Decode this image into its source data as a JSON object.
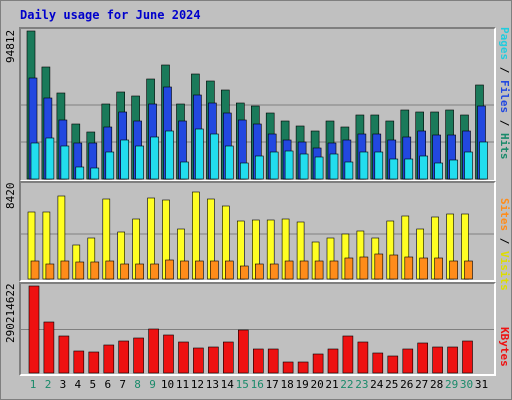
{
  "title": "Daily usage for June 2024",
  "chart_data": [
    {
      "type": "bar",
      "categories": [
        "1",
        "2",
        "3",
        "4",
        "5",
        "6",
        "7",
        "8",
        "9",
        "10",
        "11",
        "12",
        "13",
        "14",
        "15",
        "16",
        "17",
        "18",
        "19",
        "20",
        "21",
        "22",
        "23",
        "24",
        "25",
        "26",
        "27",
        "28",
        "29",
        "30",
        "31"
      ],
      "ylim": [
        0,
        94812
      ],
      "ytick": "94812",
      "series": [
        {
          "name": "Hits",
          "color": "#1a7a5a",
          "values": [
            94812,
            72000,
            55000,
            35000,
            30000,
            48000,
            56000,
            53000,
            64000,
            73000,
            48000,
            67000,
            63000,
            57000,
            49000,
            47000,
            42000,
            37000,
            34000,
            31000,
            37000,
            33000,
            41000,
            41000,
            37000,
            44000,
            43000,
            43000,
            44000,
            41000,
            60000
          ]
        },
        {
          "name": "Files",
          "color": "#2248e0",
          "values": [
            65000,
            52000,
            38000,
            23000,
            23000,
            33000,
            43000,
            37000,
            48000,
            59000,
            37000,
            54000,
            49000,
            42000,
            38000,
            35000,
            29000,
            25000,
            24000,
            20000,
            23000,
            25000,
            29000,
            29000,
            25000,
            27000,
            31000,
            28000,
            28000,
            31000,
            47000
          ]
        },
        {
          "name": "Pages",
          "color": "#22ddee",
          "values": [
            23000,
            26000,
            21000,
            8000,
            7000,
            17000,
            25000,
            21000,
            27000,
            31000,
            11000,
            32000,
            29000,
            21000,
            10000,
            15000,
            17000,
            18000,
            16000,
            14000,
            16000,
            11000,
            17000,
            17000,
            13000,
            13000,
            15000,
            10000,
            12000,
            17000,
            24000
          ]
        }
      ]
    },
    {
      "type": "bar",
      "categories": [
        "1",
        "2",
        "3",
        "4",
        "5",
        "6",
        "7",
        "8",
        "9",
        "10",
        "11",
        "12",
        "13",
        "14",
        "15",
        "16",
        "17",
        "18",
        "19",
        "20",
        "21",
        "22",
        "23",
        "24",
        "25",
        "26",
        "27",
        "28",
        "29",
        "30",
        "31"
      ],
      "ylim": [
        0,
        8420
      ],
      "ytick": "8420",
      "series": [
        {
          "name": "Visits",
          "color": "#ffff22",
          "values": [
            6300,
            6300,
            7800,
            3200,
            3800,
            7500,
            4400,
            5600,
            7600,
            7400,
            4700,
            8100,
            7500,
            6800,
            5400,
            5500,
            5500,
            5600,
            5300,
            3500,
            3800,
            4200,
            4500,
            3800,
            5400,
            5900,
            4700,
            5800,
            6100,
            6100,
            0
          ]
        },
        {
          "name": "Sites",
          "color": "#ff8c1a",
          "values": [
            1650,
            1400,
            1700,
            1600,
            1600,
            1650,
            1400,
            1400,
            1400,
            1750,
            1700,
            1650,
            1650,
            1650,
            1250,
            1400,
            1400,
            1700,
            1700,
            1700,
            1700,
            2000,
            2100,
            2300,
            2200,
            2100,
            2000,
            2000,
            1700,
            1700,
            0
          ]
        }
      ]
    },
    {
      "type": "bar",
      "categories": [
        "1",
        "2",
        "3",
        "4",
        "5",
        "6",
        "7",
        "8",
        "9",
        "10",
        "11",
        "12",
        "13",
        "14",
        "15",
        "16",
        "17",
        "18",
        "19",
        "20",
        "21",
        "22",
        "23",
        "24",
        "25",
        "26",
        "27",
        "28",
        "29",
        "30",
        "31"
      ],
      "ylim": [
        0,
        290214622
      ],
      "ytick": "290214622",
      "series": [
        {
          "name": "KBytes",
          "color": "#ee1111",
          "values": [
            290214622,
            170000000,
            125000000,
            72000000,
            70000000,
            92000000,
            106000000,
            118000000,
            148000000,
            126000000,
            105000000,
            83000000,
            88000000,
            103000000,
            145000000,
            80000000,
            81000000,
            38000000,
            38000000,
            63000000,
            81000000,
            125000000,
            104000000,
            68000000,
            58000000,
            80000000,
            99000000,
            87000000,
            88000000,
            107000000,
            0
          ]
        }
      ]
    }
  ],
  "legend": {
    "top": [
      {
        "text": "Pages",
        "color": "#22ccdd"
      },
      {
        "text": " / ",
        "color": "#000000"
      },
      {
        "text": "Files",
        "color": "#2248e0"
      },
      {
        "text": " / ",
        "color": "#000000"
      },
      {
        "text": "Hits",
        "color": "#1a8a6a"
      }
    ],
    "middle": [
      {
        "text": "Sites",
        "color": "#ff8c1a"
      },
      {
        "text": " / ",
        "color": "#000000"
      },
      {
        "text": "Visits",
        "color": "#dddd00"
      }
    ],
    "bottom": [
      {
        "text": "KBytes",
        "color": "#ee1111"
      }
    ]
  },
  "weekend_days": [
    "1",
    "2",
    "8",
    "9",
    "15",
    "16",
    "22",
    "23",
    "29",
    "30"
  ],
  "weekend_color": "#1a8a6a",
  "weekday_color": "#000000"
}
